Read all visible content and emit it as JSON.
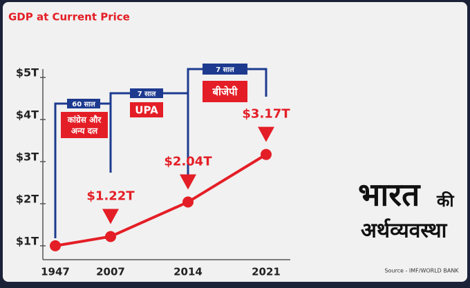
{
  "chart_data": {
    "type": "line",
    "title": "GDP at Current Price",
    "categories": [
      "1947",
      "2007",
      "2014",
      "2021"
    ],
    "series": [
      {
        "name": "GDP",
        "color": "#e41e26",
        "values": [
          1,
          1.22,
          2.04,
          3.17
        ],
        "value_labels": [
          null,
          "$1.22T",
          "$2.04T",
          "$3.17T"
        ]
      }
    ],
    "ylim": [
      0.67,
      5.2
    ],
    "yticks": [
      {
        "value": 1,
        "label": "$1T"
      },
      {
        "value": 2,
        "label": "$2T"
      },
      {
        "value": 3,
        "label": "$3T"
      },
      {
        "value": 4,
        "label": "$4T"
      },
      {
        "value": 5,
        "label": "$5T"
      }
    ],
    "periods": [
      {
        "duration": "60 साल",
        "party": [
          "कांग्रेस और",
          "अन्य दल"
        ]
      },
      {
        "duration": "7 साल",
        "party": [
          "UPA"
        ]
      },
      {
        "duration": "7 साल",
        "party": [
          "बीजेपी"
        ]
      }
    ],
    "brand": {
      "main": "भारत",
      "suffix": "की",
      "sub": "अर्थव्यवस्था"
    },
    "source": "Source - IMF/WORLD BANK"
  }
}
